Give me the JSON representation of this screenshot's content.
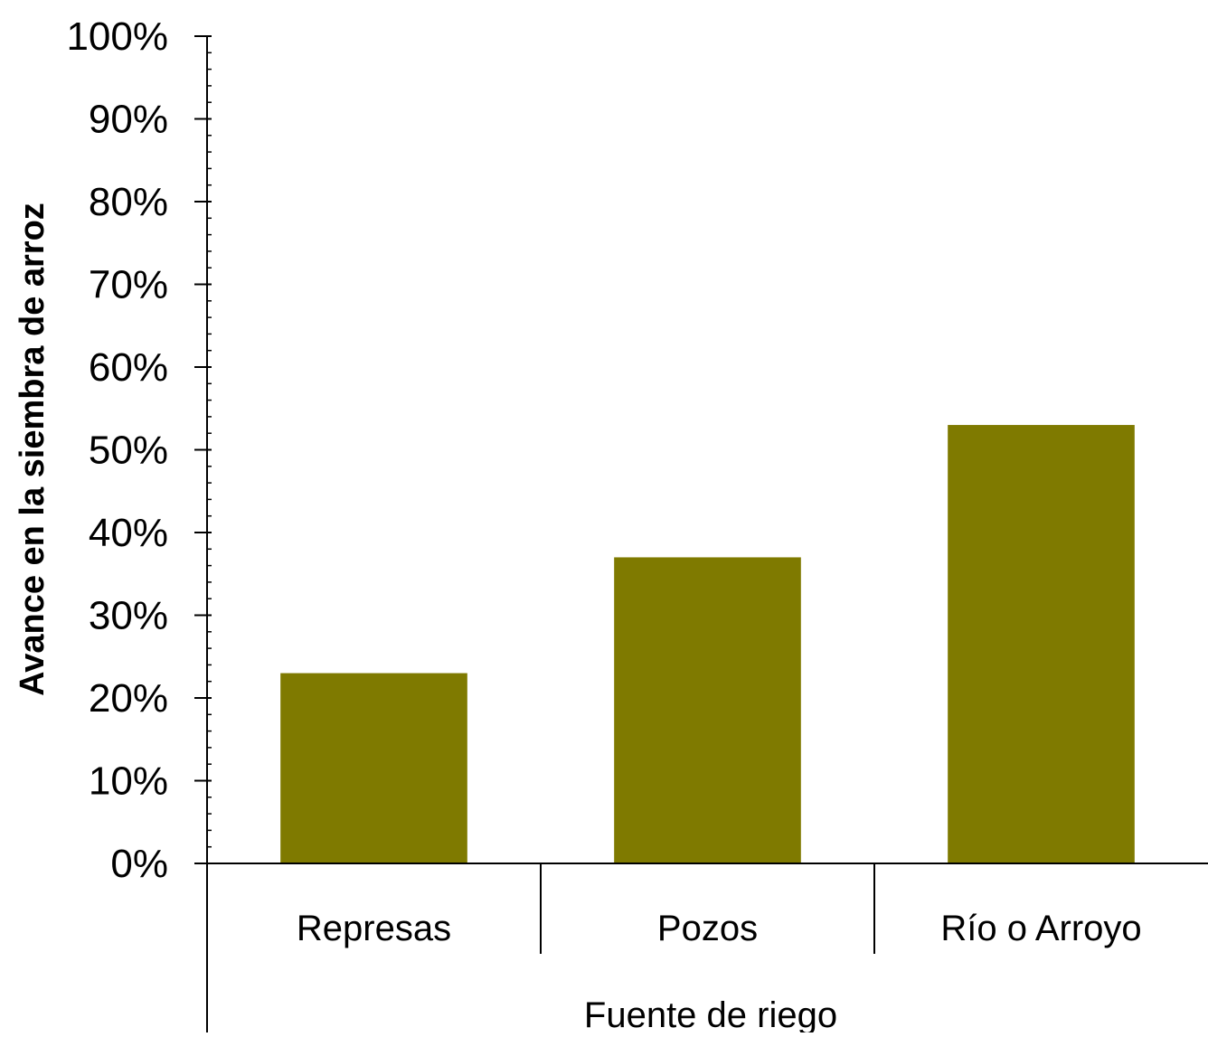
{
  "chart_data": {
    "type": "bar",
    "categories": [
      "Represas",
      "Pozos",
      "Río o Arroyo"
    ],
    "values": [
      23,
      37,
      53
    ],
    "value_unit": "%",
    "xlabel": "Fuente de riego",
    "ylabel": "Avance en la siembra de arroz",
    "ylim": [
      0,
      100
    ],
    "ytick_step": 10,
    "ytick_minor_step": 2,
    "y_tick_labels": [
      "0%",
      "10%",
      "20%",
      "30%",
      "40%",
      "50%",
      "60%",
      "70%",
      "80%",
      "90%",
      "100%"
    ],
    "bar_color": "#7f7a00",
    "grid": false,
    "legend": "none"
  }
}
